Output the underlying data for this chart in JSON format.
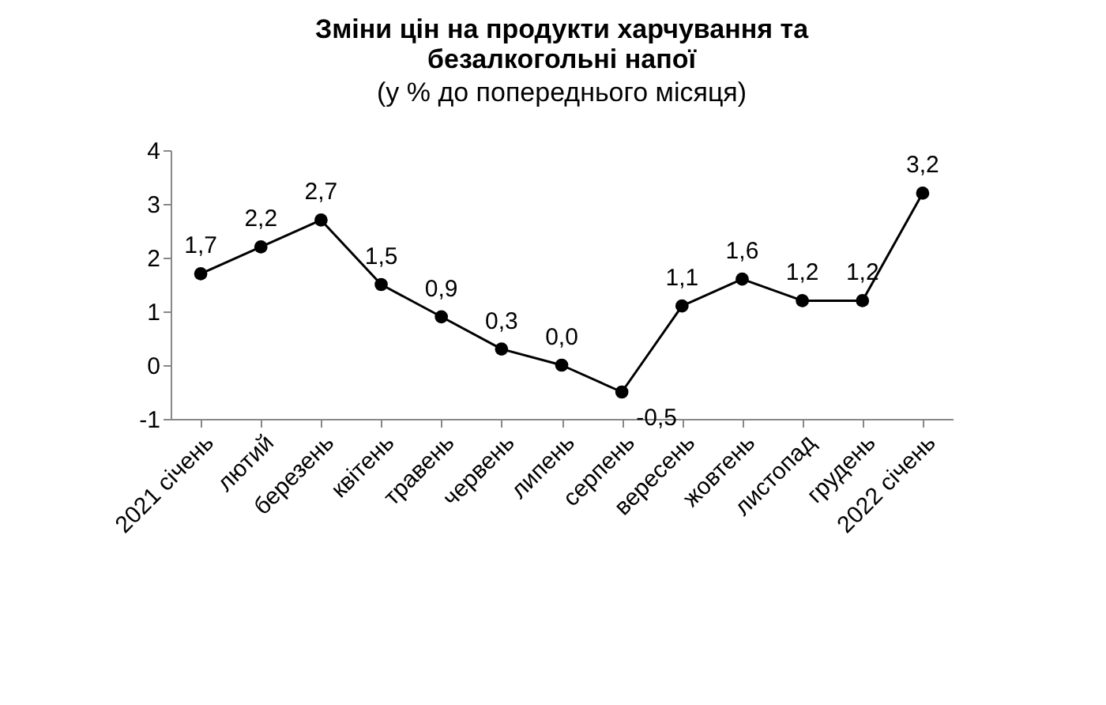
{
  "chart_data": {
    "type": "line",
    "title": "Зміни цін на продукти харчування та безалкогольні напої",
    "subtitle": "(у % до попереднього місяця)",
    "categories": [
      "2021 січень",
      "лютий",
      "березень",
      "квітень",
      "травень",
      "червень",
      "липень",
      "серпень",
      "вересень",
      "жовтень",
      "листопад",
      "грудень",
      "2022 січень"
    ],
    "series": [
      {
        "color": "#000000",
        "values": [
          1.7,
          2.2,
          2.7,
          1.5,
          0.9,
          0.3,
          0.0,
          -0.5,
          1.1,
          1.6,
          1.2,
          1.2,
          3.2
        ],
        "value_labels": [
          "1,7",
          "2,2",
          "2,7",
          "1,5",
          "0,9",
          "0,3",
          "0,0",
          "-0,5",
          "1,1",
          "1,6",
          "1,2",
          "1,2",
          "3,2"
        ]
      }
    ],
    "ylim": [
      -1,
      4
    ],
    "yticks": [
      -1,
      0,
      1,
      2,
      3,
      4
    ],
    "marker": "circle",
    "line_style": "solid",
    "grid": false
  }
}
